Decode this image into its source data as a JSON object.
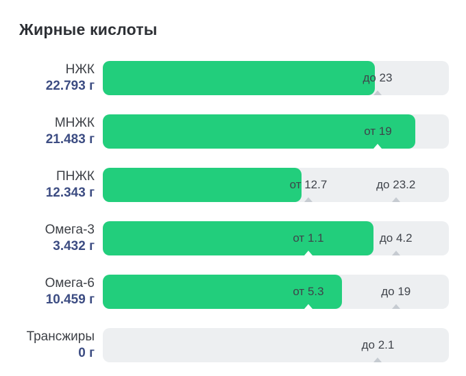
{
  "title": "Жирные кислоты",
  "unit": "г",
  "colors": {
    "bar_fill": "#22ce7c",
    "bar_track": "#edeff1",
    "value_text": "#3c4c82",
    "label_text": "#3d4046",
    "title_text": "#2d3035",
    "marker_text": "#3f434a",
    "caret_on_track": "#c6cbd1",
    "caret_on_fill": "#ffffff"
  },
  "rows": [
    {
      "name": "НЖК",
      "value": "22.793 г",
      "fill_pct": 78.7,
      "markers": [
        {
          "label": "до 23",
          "pos_pct": 79.4,
          "on_fill": false
        }
      ]
    },
    {
      "name": "МНЖК",
      "value": "21.483 г",
      "fill_pct": 90.3,
      "markers": [
        {
          "label": "от 19",
          "pos_pct": 79.5,
          "on_fill": true
        }
      ]
    },
    {
      "name": "ПНЖК",
      "value": "12.343 г",
      "fill_pct": 57.4,
      "markers": [
        {
          "label": "от 12.7",
          "pos_pct": 59.4,
          "on_fill": false
        },
        {
          "label": "до 23.2",
          "pos_pct": 84.7,
          "on_fill": false
        }
      ]
    },
    {
      "name": "Омега-3",
      "value": "3.432 г",
      "fill_pct": 78.3,
      "markers": [
        {
          "label": "от 1.1",
          "pos_pct": 59.4,
          "on_fill": true
        },
        {
          "label": "до 4.2",
          "pos_pct": 84.7,
          "on_fill": false
        }
      ]
    },
    {
      "name": "Омега-6",
      "value": "10.459 г",
      "fill_pct": 69.2,
      "markers": [
        {
          "label": "от 5.3",
          "pos_pct": 59.4,
          "on_fill": true
        },
        {
          "label": "до 19",
          "pos_pct": 84.7,
          "on_fill": false
        }
      ]
    },
    {
      "name": "Трансжиры",
      "value": "0 г",
      "fill_pct": 0,
      "markers": [
        {
          "label": "до 2.1",
          "pos_pct": 79.5,
          "on_fill": false
        }
      ]
    }
  ],
  "chart_data": {
    "type": "bar",
    "orientation": "horizontal",
    "title": "Жирные кислоты",
    "unit": "г",
    "categories": [
      "НЖК",
      "МНЖК",
      "ПНЖК",
      "Омега-3",
      "Омега-6",
      "Трансжиры"
    ],
    "values": [
      22.793,
      21.483,
      12.343,
      3.432,
      10.459,
      0
    ],
    "limits": [
      {
        "max": 23
      },
      {
        "min": 19
      },
      {
        "min": 12.7,
        "max": 23.2
      },
      {
        "min": 1.1,
        "max": 4.2
      },
      {
        "min": 5.3,
        "max": 19
      },
      {
        "max": 2.1
      }
    ],
    "legend": "none",
    "grid": false,
    "bar_color": "#22ce7c",
    "track_color": "#edeff1"
  }
}
